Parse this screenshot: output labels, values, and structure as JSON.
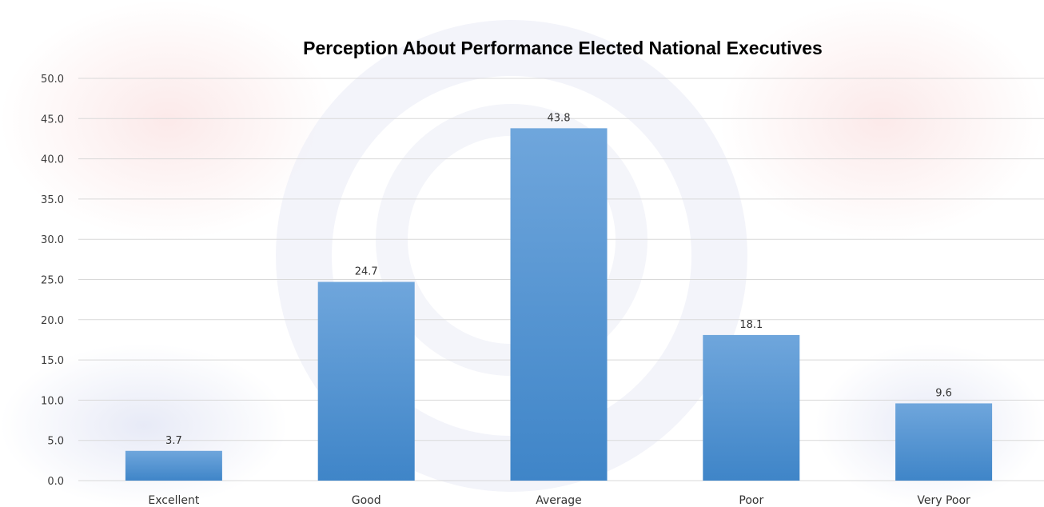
{
  "chart_data": {
    "type": "bar",
    "title": "Perception About Performance Elected National Executives",
    "xlabel": "",
    "ylabel": "",
    "categories": [
      "Excellent",
      "Good",
      "Average",
      "Poor",
      "Very Poor"
    ],
    "values": [
      3.7,
      24.7,
      43.8,
      18.1,
      9.6
    ],
    "data_labels": [
      "3.7",
      "24.7",
      "43.8",
      "18.1",
      "9.6"
    ],
    "ylim": [
      0,
      50
    ],
    "yticks": [
      "0.0",
      "5.0",
      "10.0",
      "15.0",
      "20.0",
      "25.0",
      "30.0",
      "35.0",
      "40.0",
      "45.0",
      "50.0"
    ],
    "grid": true,
    "legend": "none",
    "colors": {
      "bar_top": "#6fa6dc",
      "bar_bottom": "#3f85c8",
      "grid": "#d9d9d9",
      "axis_text": "#3b3b3b"
    }
  }
}
